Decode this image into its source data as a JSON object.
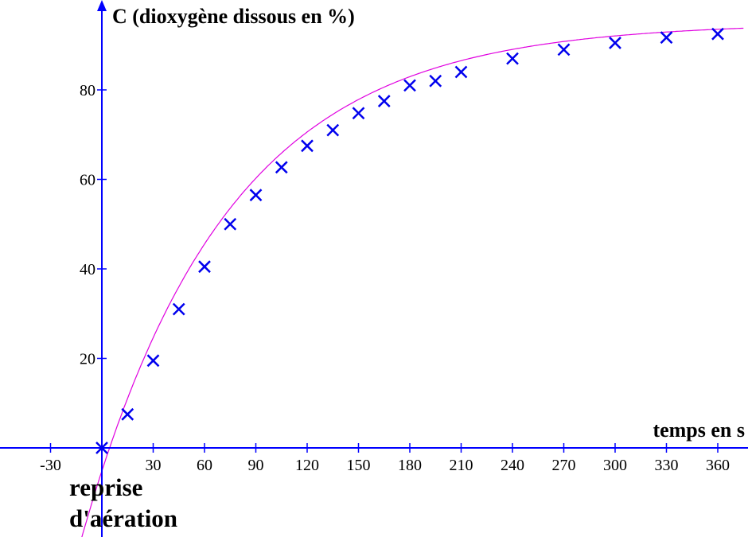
{
  "chart_data": {
    "type": "scatter",
    "title": "",
    "ylabel": "C  (dioxygène dissous en %)",
    "xlabel": "temps en s",
    "annotation_lines": [
      "reprise",
      "d'aération"
    ],
    "x_ticks": [
      -30,
      30,
      60,
      90,
      120,
      150,
      180,
      210,
      240,
      270,
      300,
      330,
      360
    ],
    "y_ticks": [
      20,
      40,
      60,
      80
    ],
    "xlim": [
      -58,
      375
    ],
    "ylim": [
      -20,
      100
    ],
    "grid": false,
    "legend": "none",
    "colors": {
      "points": "#0000ee",
      "curve": "#e000e0",
      "axes": "#0000ff",
      "text": "#000000"
    },
    "series": [
      {
        "marker": "x",
        "x": [
          0,
          15,
          30,
          45,
          60,
          75,
          90,
          105,
          120,
          135,
          150,
          165,
          180,
          195,
          210,
          240,
          270,
          300,
          330,
          360
        ],
        "y": [
          0,
          7.5,
          19.5,
          31,
          40.5,
          50,
          56.5,
          62.7,
          67.5,
          71,
          74.8,
          77.5,
          81,
          82,
          84,
          87,
          89,
          90.5,
          91.7,
          92.5
        ]
      }
    ],
    "fit_curve": {
      "model": "exponential_rise",
      "asymptote": 95,
      "tau": 85,
      "x0": 4.5,
      "x_range": [
        -14,
        375
      ]
    }
  }
}
